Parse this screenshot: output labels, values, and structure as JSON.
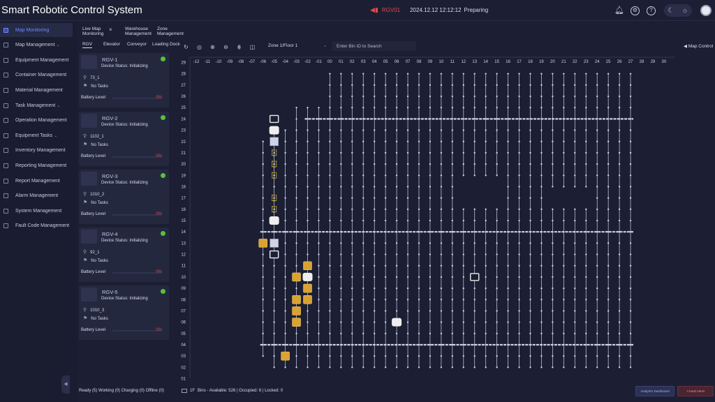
{
  "header": {
    "title": "Smart Robotic Control System",
    "robot": "RGV01",
    "datetime": "2024.12.12 12:12:12",
    "state": "Preparing"
  },
  "sidebar": {
    "items": [
      {
        "label": "Map Monitoring",
        "icon": "map-icon",
        "active": true
      },
      {
        "label": "Map Management",
        "icon": "map-management-icon",
        "chevron": true
      },
      {
        "label": "Equipment Management",
        "icon": "equipment-icon"
      },
      {
        "label": "Container Management",
        "icon": "container-icon"
      },
      {
        "label": "Material Management",
        "icon": "material-icon"
      },
      {
        "label": "Task Management",
        "icon": "task-icon",
        "chevron": true
      },
      {
        "label": "Operation Management",
        "icon": "operation-icon"
      },
      {
        "label": "Equipment Tasks",
        "icon": "equipment-task-icon",
        "chevron": true
      },
      {
        "label": "Inventory Management",
        "icon": "inventory-icon"
      },
      {
        "label": "Reporting Management",
        "icon": "reporting-icon"
      },
      {
        "label": "Report Management",
        "icon": "report-icon"
      },
      {
        "label": "Alarm Management",
        "icon": "alarm-icon"
      },
      {
        "label": "System Management",
        "icon": "system-icon"
      },
      {
        "label": "Fault Code Management",
        "icon": "fault-code-icon"
      }
    ]
  },
  "tabs": [
    {
      "line1": "Live Map",
      "line2": "Monitoring"
    },
    {
      "line1": "Warehouse",
      "line2": "Management"
    },
    {
      "line1": "Zone",
      "line2": "Management"
    }
  ],
  "subtabs": [
    "RGV",
    "Elevator",
    "Conveyor",
    "Loading Dock"
  ],
  "rgv_cards": [
    {
      "name": "RGV-1",
      "status": "Device Status: Initializing",
      "location": "73_1",
      "task": "No Tasks",
      "battery_label": "Battery Level",
      "battery": "0%",
      "online_color": "#58c13a"
    },
    {
      "name": "RGV-2",
      "status": "Device Status: Initializing",
      "location": "1102_1",
      "task": "No Tasks",
      "battery_label": "Battery Level",
      "battery": "0%",
      "online_color": "#58c13a"
    },
    {
      "name": "RGV-3",
      "status": "Device Status: Initializing",
      "location": "1010_2",
      "task": "No Tasks",
      "battery_label": "Battery Level",
      "battery": "0%",
      "online_color": "#58c13a"
    },
    {
      "name": "RGV-4",
      "status": "Device Status: Initializing",
      "location": "92_1",
      "task": "No Tasks",
      "battery_label": "Battery Level",
      "battery": "0%",
      "online_color": "#58c13a"
    },
    {
      "name": "RGV-5",
      "status": "Device Status: Initializing",
      "location": "1010_3",
      "task": "No Tasks",
      "battery_label": "Battery Level",
      "battery": "0%",
      "online_color": "#58c13a"
    }
  ],
  "legend_summary": "Ready (5) Working (0) Charging (0) Offline (0)",
  "toolbar": {
    "icons": [
      "refresh-icon",
      "locate-icon",
      "zoom-in-icon",
      "zoom-out-icon",
      "layers-icon",
      "split-view-icon"
    ],
    "zone": "Zone 1/Floor 1",
    "search_placeholder": "Enter Bin ID to Search",
    "map_control": "Map Control"
  },
  "map": {
    "col_labels": [
      "12",
      "11",
      "10",
      "09",
      "08",
      "07",
      "06",
      "05",
      "04",
      "03",
      "02",
      "01",
      "00",
      "01",
      "02",
      "03",
      "04",
      "05",
      "06",
      "07",
      "08",
      "09",
      "10",
      "11",
      "12",
      "13",
      "14",
      "15",
      "16",
      "17",
      "18",
      "19",
      "20",
      "21",
      "22",
      "23",
      "24",
      "25",
      "26",
      "27",
      "28",
      "29",
      "30"
    ],
    "col_signs": [
      "-",
      "-",
      "-",
      "-",
      "-",
      "-",
      "-",
      "-",
      "-",
      "-",
      "-",
      "-",
      "",
      "",
      "",
      "",
      "",
      "",
      "",
      "",
      "",
      "",
      "",
      "",
      "",
      "",
      "",
      "",
      "",
      "",
      "",
      "",
      "",
      "",
      "",
      "",
      "",
      "",
      "",
      "",
      "",
      "",
      ""
    ],
    "row_labels": [
      "29",
      "28",
      "27",
      "26",
      "25",
      "24",
      "23",
      "22",
      "21",
      "20",
      "19",
      "18",
      "17",
      "16",
      "15",
      "14",
      "13",
      "12",
      "11",
      "10",
      "09",
      "08",
      "07",
      "06",
      "05",
      "04",
      "03",
      "02",
      "01"
    ],
    "colors": {
      "track": "#cfd3e6",
      "bin_gold": "#d9a233",
      "robot": "#eeeeee"
    }
  },
  "bottom": {
    "floor": "1F",
    "bins": "Bins - Available: 526 | Occupied: 6 | Locked: 0",
    "analytics": "Analytics Dashboard",
    "alerts": "Fault Alerts"
  }
}
